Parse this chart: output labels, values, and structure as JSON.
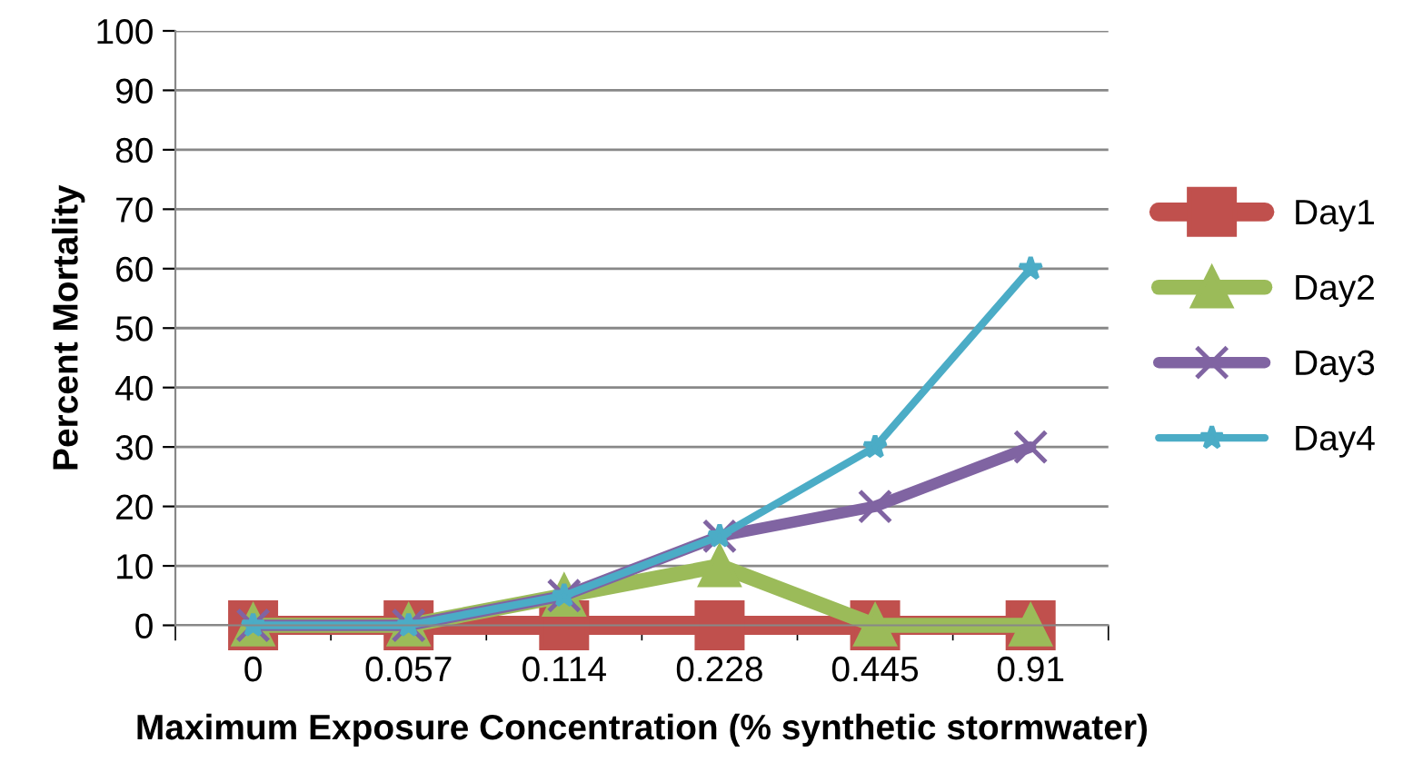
{
  "chart_data": {
    "type": "line",
    "xlabel": "Maximum Exposure Concentration (% synthetic stormwater)",
    "ylabel": "Percent Mortality",
    "categories": [
      "0",
      "0.057",
      "0.114",
      "0.228",
      "0.445",
      "0.91"
    ],
    "series": [
      {
        "name": "Day1",
        "color": "#c0504d",
        "marker": "square",
        "values": [
          0,
          0,
          0,
          0,
          0,
          0
        ]
      },
      {
        "name": "Day2",
        "color": "#9bbb59",
        "marker": "triangle",
        "values": [
          0,
          0,
          5,
          10,
          0,
          0
        ]
      },
      {
        "name": "Day3",
        "color": "#8064a2",
        "marker": "cross",
        "values": [
          0,
          0,
          5,
          15,
          20,
          30
        ]
      },
      {
        "name": "Day4",
        "color": "#4bacc6",
        "marker": "star",
        "values": [
          0,
          0,
          5,
          15,
          30,
          60
        ]
      }
    ],
    "ylim": [
      0,
      100
    ],
    "yticks": [
      0,
      10,
      20,
      30,
      40,
      50,
      60,
      70,
      80,
      90,
      100
    ],
    "grid": "y",
    "legend": "right",
    "line_style": "solid"
  }
}
